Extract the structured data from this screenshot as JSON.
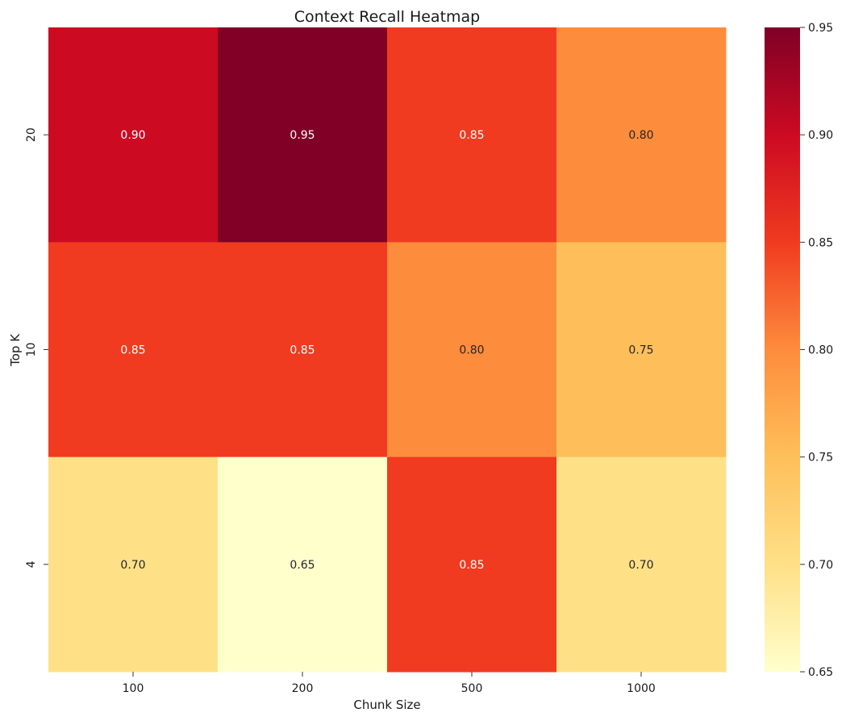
{
  "chart_data": {
    "type": "heatmap",
    "title": "Context Recall Heatmap",
    "xlabel": "Chunk Size",
    "ylabel": "Top K",
    "x_categories": [
      "100",
      "200",
      "500",
      "1000"
    ],
    "y_categories": [
      "20",
      "10",
      "4"
    ],
    "values": [
      [
        0.9,
        0.95,
        0.85,
        0.8
      ],
      [
        0.85,
        0.85,
        0.8,
        0.75
      ],
      [
        0.7,
        0.65,
        0.85,
        0.7
      ]
    ],
    "value_format": "0.00",
    "colormap": "YlOrRd",
    "vmin": 0.65,
    "vmax": 0.95,
    "colorbar_ticks": [
      "0.65",
      "0.70",
      "0.75",
      "0.80",
      "0.85",
      "0.90",
      "0.95"
    ],
    "colorbar_position": "right",
    "colors": {
      "0.65": "#ffffcc",
      "0.70": "#fee087",
      "0.75": "#febf5a",
      "0.80": "#fd8c3c",
      "0.85": "#f03b20",
      "0.90": "#cc0a22",
      "0.95": "#800026"
    },
    "label_colors": {
      "light": "#ffffff",
      "dark": "#262626"
    }
  }
}
